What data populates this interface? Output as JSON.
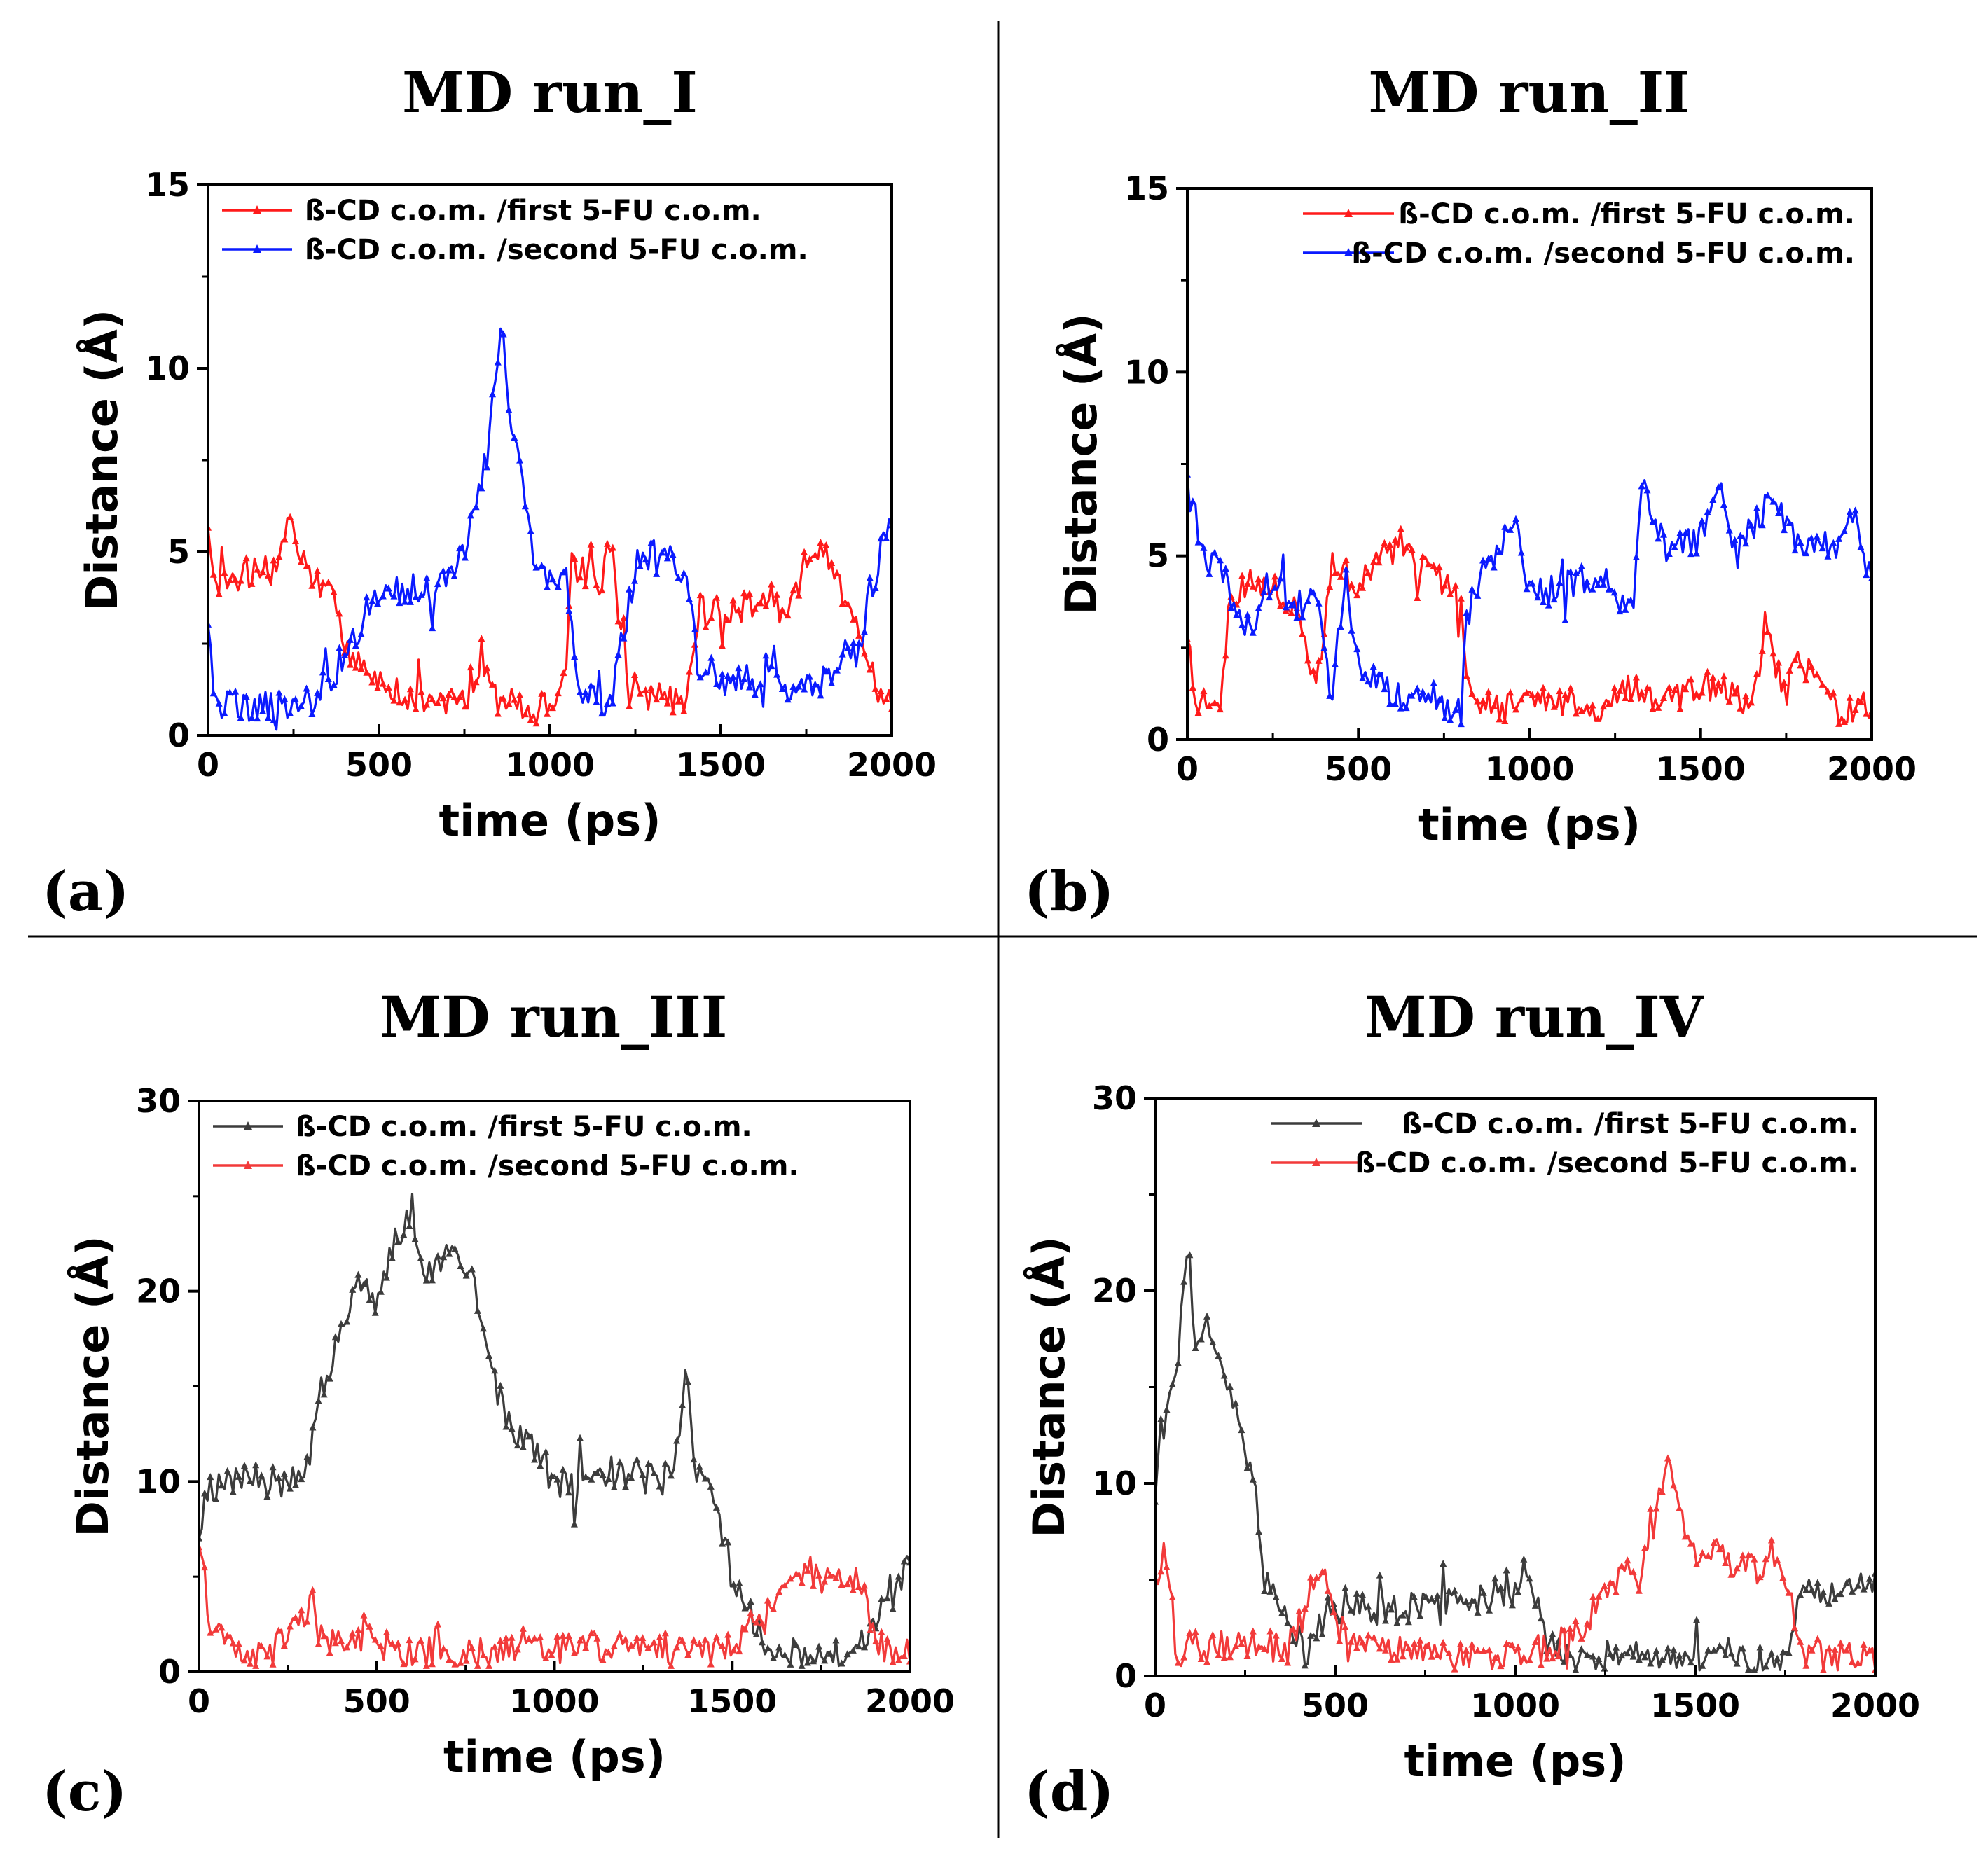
{
  "figure": {
    "panel_labels": [
      "(a)",
      "(b)",
      "(c)",
      "(d)"
    ]
  },
  "chart_data": [
    {
      "type": "line",
      "title": "MD run_I",
      "panel_label": "(a)",
      "xlabel": "time (ps)",
      "ylabel": "Distance (Å)",
      "xlim": [
        0,
        2000
      ],
      "ylim": [
        0,
        15
      ],
      "xticks": [
        0,
        500,
        1000,
        1500,
        2000
      ],
      "yticks": [
        0,
        5,
        10,
        15
      ],
      "legend_position": "top-left",
      "series": [
        {
          "name": "ß-CD c.o.m. /first 5-FU c.o.m.",
          "color": "#ff1a1a",
          "anchors": [
            [
              0,
              5.6
            ],
            [
              20,
              4.2
            ],
            [
              100,
              4.4
            ],
            [
              200,
              4.5
            ],
            [
              230,
              6.0
            ],
            [
              300,
              4.2
            ],
            [
              370,
              3.7
            ],
            [
              400,
              2.3
            ],
            [
              450,
              1.9
            ],
            [
              500,
              1.4
            ],
            [
              600,
              1.0
            ],
            [
              700,
              0.9
            ],
            [
              800,
              1.7
            ],
            [
              850,
              0.9
            ],
            [
              950,
              0.7
            ],
            [
              1000,
              0.8
            ],
            [
              1040,
              1.5
            ],
            [
              1070,
              4.6
            ],
            [
              1150,
              4.2
            ],
            [
              1180,
              5.5
            ],
            [
              1200,
              3.5
            ],
            [
              1230,
              1.2
            ],
            [
              1300,
              1.0
            ],
            [
              1400,
              1.0
            ],
            [
              1440,
              3.5
            ],
            [
              1500,
              3.3
            ],
            [
              1600,
              3.6
            ],
            [
              1700,
              3.4
            ],
            [
              1760,
              5.0
            ],
            [
              1850,
              4.1
            ],
            [
              1900,
              3.2
            ],
            [
              1960,
              1.0
            ],
            [
              2000,
              1.1
            ]
          ]
        },
        {
          "name": "ß-CD c.o.m. /second 5-FU c.o.m.",
          "color": "#0a1aff",
          "anchors": [
            [
              0,
              3.0
            ],
            [
              20,
              0.9
            ],
            [
              100,
              0.8
            ],
            [
              200,
              0.8
            ],
            [
              300,
              0.9
            ],
            [
              350,
              1.5
            ],
            [
              400,
              2.2
            ],
            [
              450,
              2.8
            ],
            [
              500,
              3.8
            ],
            [
              600,
              4.0
            ],
            [
              700,
              4.1
            ],
            [
              750,
              5.0
            ],
            [
              800,
              7.0
            ],
            [
              840,
              9.5
            ],
            [
              860,
              11.5
            ],
            [
              880,
              9.0
            ],
            [
              900,
              8.0
            ],
            [
              950,
              5.0
            ],
            [
              1000,
              4.2
            ],
            [
              1050,
              4.2
            ],
            [
              1080,
              1.4
            ],
            [
              1150,
              1.0
            ],
            [
              1180,
              0.8
            ],
            [
              1200,
              2.0
            ],
            [
              1250,
              4.5
            ],
            [
              1300,
              5.0
            ],
            [
              1400,
              4.5
            ],
            [
              1430,
              2.0
            ],
            [
              1500,
              1.5
            ],
            [
              1600,
              1.5
            ],
            [
              1650,
              2.2
            ],
            [
              1700,
              1.0
            ],
            [
              1800,
              1.5
            ],
            [
              1900,
              2.3
            ],
            [
              1950,
              4.5
            ],
            [
              2000,
              6.0
            ]
          ]
        }
      ]
    },
    {
      "type": "line",
      "title": "MD run_II",
      "panel_label": "(b)",
      "xlabel": "time (ps)",
      "ylabel": "Distance (Å)",
      "xlim": [
        0,
        2000
      ],
      "ylim": [
        0,
        15
      ],
      "xticks": [
        0,
        500,
        1000,
        1500,
        2000
      ],
      "yticks": [
        0,
        5,
        10,
        15
      ],
      "legend_position": "top-right",
      "series": [
        {
          "name": "ß-CD c.o.m. /first 5-FU c.o.m.",
          "color": "#ff1a1a",
          "anchors": [
            [
              0,
              3.0
            ],
            [
              20,
              1.0
            ],
            [
              100,
              1.0
            ],
            [
              130,
              4.0
            ],
            [
              200,
              4.3
            ],
            [
              300,
              3.8
            ],
            [
              380,
              1.5
            ],
            [
              420,
              4.8
            ],
            [
              500,
              4.2
            ],
            [
              600,
              5.2
            ],
            [
              700,
              4.6
            ],
            [
              800,
              3.8
            ],
            [
              820,
              1.3
            ],
            [
              900,
              0.9
            ],
            [
              1000,
              1.0
            ],
            [
              1100,
              1.0
            ],
            [
              1200,
              0.9
            ],
            [
              1300,
              1.5
            ],
            [
              1400,
              1.0
            ],
            [
              1500,
              1.5
            ],
            [
              1600,
              1.2
            ],
            [
              1650,
              0.8
            ],
            [
              1700,
              2.8
            ],
            [
              1750,
              1.2
            ],
            [
              1780,
              2.4
            ],
            [
              1850,
              1.3
            ],
            [
              1900,
              0.8
            ],
            [
              2000,
              1.0
            ]
          ]
        },
        {
          "name": "ß-CD c.o.m. /second 5-FU c.o.m.",
          "color": "#0a1aff",
          "anchors": [
            [
              0,
              6.8
            ],
            [
              50,
              5.0
            ],
            [
              100,
              4.5
            ],
            [
              180,
              3.0
            ],
            [
              250,
              4.5
            ],
            [
              300,
              3.5
            ],
            [
              380,
              4.0
            ],
            [
              420,
              1.0
            ],
            [
              460,
              4.5
            ],
            [
              500,
              2.0
            ],
            [
              600,
              1.2
            ],
            [
              700,
              1.2
            ],
            [
              800,
              0.8
            ],
            [
              830,
              4.0
            ],
            [
              900,
              5.0
            ],
            [
              950,
              6.2
            ],
            [
              1000,
              4.0
            ],
            [
              1100,
              4.2
            ],
            [
              1200,
              4.5
            ],
            [
              1300,
              3.5
            ],
            [
              1330,
              7.0
            ],
            [
              1400,
              5.0
            ],
            [
              1500,
              5.5
            ],
            [
              1560,
              7.0
            ],
            [
              1600,
              5.0
            ],
            [
              1700,
              6.5
            ],
            [
              1800,
              5.2
            ],
            [
              1900,
              5.3
            ],
            [
              1950,
              6.0
            ],
            [
              2000,
              4.2
            ]
          ]
        }
      ]
    },
    {
      "type": "line",
      "title": "MD run_III",
      "panel_label": "(c)",
      "xlabel": "time (ps)",
      "ylabel": "Distance (Å)",
      "xlim": [
        0,
        2000
      ],
      "ylim": [
        0,
        30
      ],
      "xticks": [
        0,
        500,
        1000,
        1500,
        2000
      ],
      "yticks": [
        0,
        10,
        20,
        30
      ],
      "legend_position": "top-left",
      "series": [
        {
          "name": "ß-CD c.o.m. /first 5-FU c.o.m.",
          "color": "#3c3c3c",
          "anchors": [
            [
              0,
              7.5
            ],
            [
              30,
              9.5
            ],
            [
              100,
              10.5
            ],
            [
              200,
              10.0
            ],
            [
              300,
              10.0
            ],
            [
              330,
              14.0
            ],
            [
              400,
              18.0
            ],
            [
              450,
              21.0
            ],
            [
              500,
              19.5
            ],
            [
              560,
              23.0
            ],
            [
              600,
              24.5
            ],
            [
              630,
              21.0
            ],
            [
              700,
              22.0
            ],
            [
              750,
              21.0
            ],
            [
              780,
              20.0
            ],
            [
              820,
              16.0
            ],
            [
              870,
              13.0
            ],
            [
              950,
              11.5
            ],
            [
              1000,
              10.0
            ],
            [
              1100,
              10.0
            ],
            [
              1200,
              10.5
            ],
            [
              1300,
              10.0
            ],
            [
              1340,
              11.0
            ],
            [
              1370,
              15.5
            ],
            [
              1400,
              10.5
            ],
            [
              1450,
              9.0
            ],
            [
              1500,
              5.0
            ],
            [
              1550,
              3.0
            ],
            [
              1600,
              1.0
            ],
            [
              1700,
              1.0
            ],
            [
              1850,
              1.0
            ],
            [
              1900,
              2.5
            ],
            [
              1950,
              4.0
            ],
            [
              2000,
              6.0
            ]
          ]
        },
        {
          "name": "ß-CD c.o.m. /second 5-FU c.o.m.",
          "color": "#f23a3a",
          "anchors": [
            [
              0,
              6.5
            ],
            [
              40,
              2.0
            ],
            [
              100,
              1.0
            ],
            [
              200,
              1.0
            ],
            [
              320,
              3.5
            ],
            [
              350,
              1.2
            ],
            [
              450,
              1.8
            ],
            [
              600,
              1.0
            ],
            [
              800,
              1.0
            ],
            [
              1000,
              1.0
            ],
            [
              1200,
              1.5
            ],
            [
              1400,
              1.0
            ],
            [
              1500,
              1.5
            ],
            [
              1550,
              2.5
            ],
            [
              1600,
              3.5
            ],
            [
              1700,
              5.0
            ],
            [
              1800,
              5.5
            ],
            [
              1870,
              4.5
            ],
            [
              1900,
              2.0
            ],
            [
              1950,
              0.8
            ],
            [
              2000,
              0.8
            ]
          ]
        }
      ]
    },
    {
      "type": "line",
      "title": "MD run_IV",
      "panel_label": "(d)",
      "xlabel": "time (ps)",
      "ylabel": "Distance (Å)",
      "xlim": [
        0,
        2000
      ],
      "ylim": [
        0,
        30
      ],
      "xticks": [
        0,
        500,
        1000,
        1500,
        2000
      ],
      "yticks": [
        0,
        10,
        20,
        30
      ],
      "legend_position": "top-right",
      "series": [
        {
          "name": "ß-CD c.o.m. /first 5-FU c.o.m.",
          "color": "#3c3c3c",
          "anchors": [
            [
              0,
              9.0
            ],
            [
              20,
              14.0
            ],
            [
              60,
              15.5
            ],
            [
              90,
              23.0
            ],
            [
              110,
              17.0
            ],
            [
              150,
              18.5
            ],
            [
              200,
              16.0
            ],
            [
              250,
              12.0
            ],
            [
              280,
              10.0
            ],
            [
              300,
              5.0
            ],
            [
              350,
              3.5
            ],
            [
              400,
              2.0
            ],
            [
              420,
              1.0
            ],
            [
              500,
              4.0
            ],
            [
              600,
              3.5
            ],
            [
              700,
              3.5
            ],
            [
              800,
              3.5
            ],
            [
              900,
              4.0
            ],
            [
              1000,
              4.5
            ],
            [
              1030,
              5.8
            ],
            [
              1060,
              3.5
            ],
            [
              1100,
              1.5
            ],
            [
              1200,
              1.0
            ],
            [
              1300,
              1.0
            ],
            [
              1500,
              0.8
            ],
            [
              1700,
              0.8
            ],
            [
              1760,
              1.5
            ],
            [
              1800,
              4.5
            ],
            [
              1900,
              4.5
            ],
            [
              2000,
              4.5
            ]
          ]
        },
        {
          "name": "ß-CD c.o.m. /second 5-FU c.o.m.",
          "color": "#f23a3a",
          "anchors": [
            [
              0,
              5.0
            ],
            [
              30,
              6.5
            ],
            [
              60,
              1.5
            ],
            [
              150,
              1.5
            ],
            [
              300,
              1.5
            ],
            [
              370,
              1.5
            ],
            [
              420,
              3.5
            ],
            [
              450,
              6.0
            ],
            [
              500,
              3.0
            ],
            [
              550,
              1.5
            ],
            [
              650,
              1.5
            ],
            [
              800,
              1.0
            ],
            [
              1000,
              1.0
            ],
            [
              1100,
              1.5
            ],
            [
              1200,
              2.5
            ],
            [
              1250,
              5.0
            ],
            [
              1350,
              5.0
            ],
            [
              1400,
              9.0
            ],
            [
              1420,
              11.5
            ],
            [
              1450,
              9.0
            ],
            [
              1500,
              6.5
            ],
            [
              1600,
              6.0
            ],
            [
              1700,
              5.5
            ],
            [
              1760,
              5.0
            ],
            [
              1780,
              1.5
            ],
            [
              1850,
              1.0
            ],
            [
              2000,
              1.0
            ]
          ]
        }
      ]
    }
  ]
}
